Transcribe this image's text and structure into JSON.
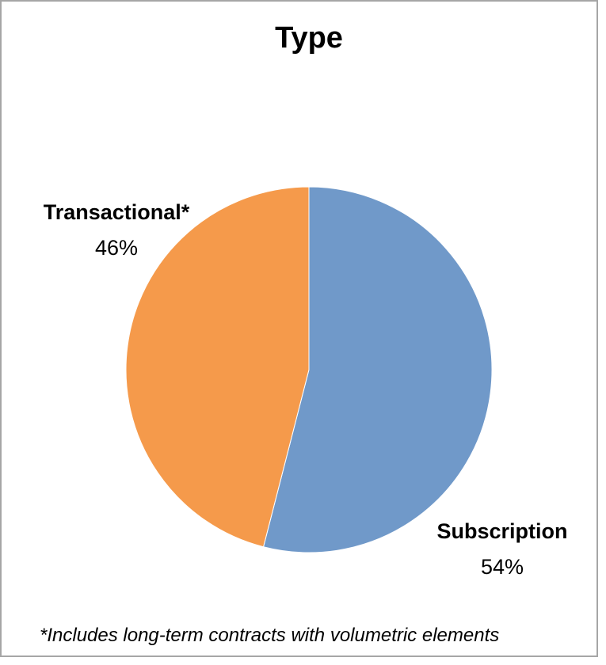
{
  "chart_data": {
    "type": "pie",
    "title": "Type",
    "slices": [
      {
        "label": "Subscription",
        "value": 54,
        "value_label": "54%",
        "color": "#7099c9"
      },
      {
        "label": "Transactional*",
        "value": 46,
        "value_label": "46%",
        "color": "#f59a4b"
      }
    ],
    "start": "12 o'clock",
    "direction": "clockwise",
    "legend": "none (data labels next to slices)"
  },
  "footnote": "*Includes long-term contracts with volumetric elements"
}
